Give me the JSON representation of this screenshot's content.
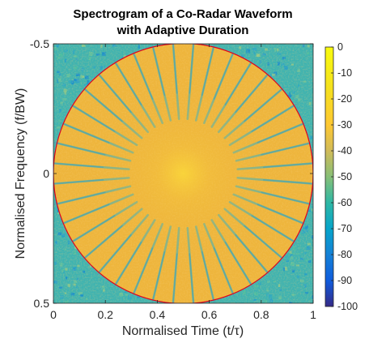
{
  "chart_data": {
    "type": "heatmap",
    "title_lines": [
      "Spectrogram of a Co-Radar Waveform",
      "with Adaptive Duration"
    ],
    "xlabel": "Normalised Time (t/τ)",
    "ylabel": "Normalised Frequency (f/BW)",
    "xlim": [
      0,
      1
    ],
    "ylim": [
      -0.5,
      0.5
    ],
    "y_direction": "reversed",
    "x_ticks": [
      "0",
      "0.2",
      "0.4",
      "0.6",
      "0.8",
      "1"
    ],
    "y_ticks": [
      "-0.5",
      "0",
      "0.5"
    ],
    "colorbar": {
      "limits": [
        -100,
        0
      ],
      "ticks": [
        "0",
        "-10",
        "-20",
        "-30",
        "-40",
        "-50",
        "-60",
        "-70",
        "-80",
        "-90",
        "-100"
      ],
      "colormap": "parula"
    },
    "spectrogram": {
      "in_circle_level_db": -20,
      "outside_circle_level_db": -45,
      "gap_level_db": -48,
      "center_level_db": -15,
      "radial_gap_count": 40
    },
    "overlay": {
      "shape": "circle",
      "center": [
        0.5,
        0
      ],
      "radius_x": 0.5,
      "radius_y": 0.5,
      "color": "#e5001a"
    }
  }
}
